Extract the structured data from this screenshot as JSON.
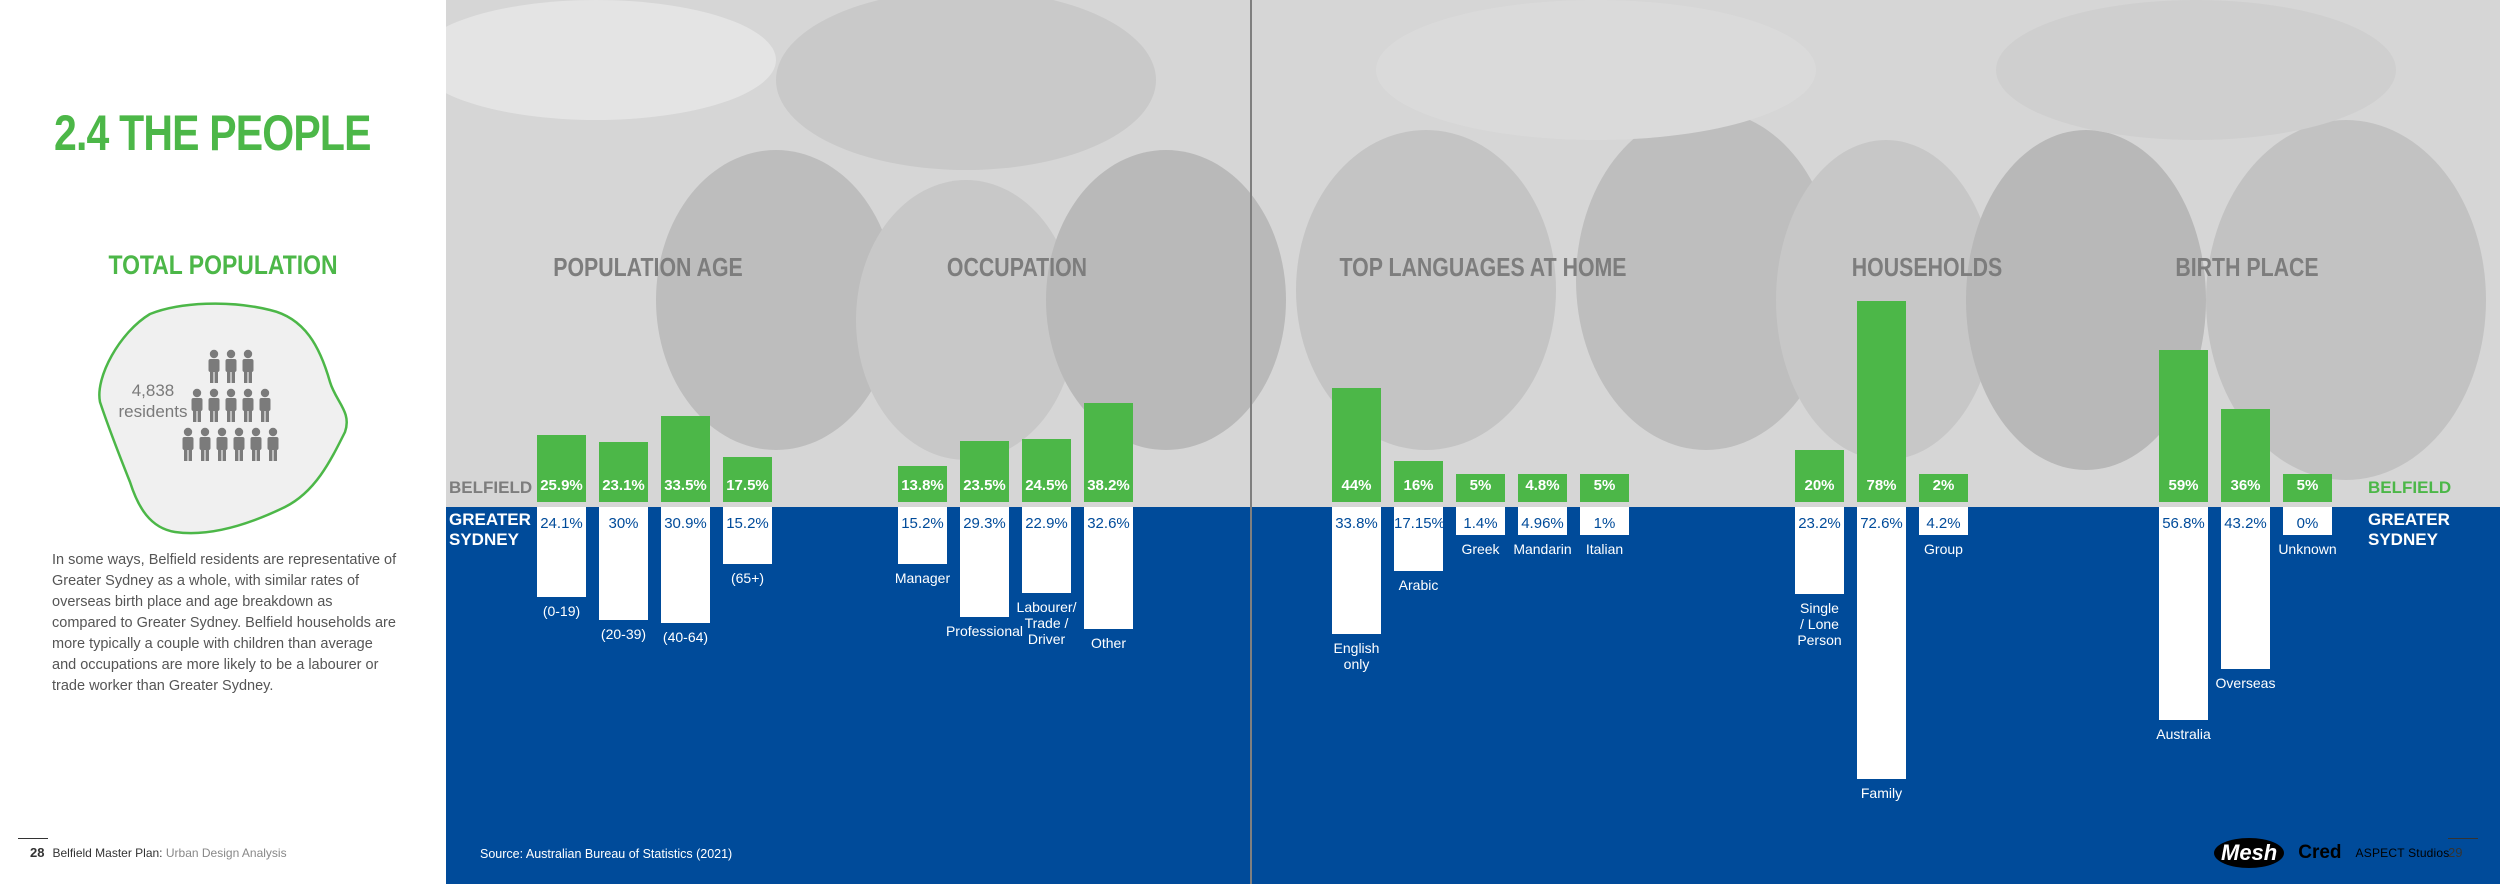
{
  "page": {
    "title": "2.4 THE PEOPLE",
    "total_population": {
      "title": "TOTAL POPULATION",
      "value": "4,838",
      "unit": "residents"
    },
    "intro": "In some ways, Belfield residents are representative of Greater Sydney as a whole, with similar rates of overseas birth place and age breakdown as compared to Greater Sydney. Belfield households are more typically a couple with children than average and occupations are more likely to be a labourer or trade worker than Greater Sydney.",
    "legend_top": "BELFIELD",
    "legend_bottom_line1": "GREATER",
    "legend_bottom_line2": "SYDNEY",
    "source": "Source: Australian Bureau of Statistics (2021)",
    "footer_left_page": "28",
    "footer_left_title": "Belfield Master Plan:",
    "footer_left_sub": "Urban Design Analysis",
    "footer_right_page": "29",
    "logo_mesh": "Mesh",
    "logo_cred": "Cred",
    "logo_aspect": "ASPECT Studios"
  },
  "colors": {
    "green": "#4cb748",
    "blue": "#004b9a",
    "photo_gray": "#d4d4d4"
  },
  "chart_data": [
    {
      "type": "bar",
      "title": "POPULATION AGE",
      "categories": [
        "(0-19)",
        "(20-39)",
        "(40-64)",
        "(65+)"
      ],
      "series": [
        {
          "name": "BELFIELD",
          "values": [
            25.9,
            23.1,
            33.5,
            17.5
          ],
          "labels": [
            "25.9%",
            "23.1%",
            "33.5%",
            "17.5%"
          ]
        },
        {
          "name": "GREATER SYDNEY",
          "values": [
            24.1,
            30,
            30.9,
            15.2
          ],
          "labels": [
            "24.1%",
            "30%",
            "30.9%",
            "15.2%"
          ]
        }
      ]
    },
    {
      "type": "bar",
      "title": "OCCUPATION",
      "categories": [
        "Manager",
        "Professional",
        "Labourer/\nTrade /\nDriver",
        "Other"
      ],
      "series": [
        {
          "name": "BELFIELD",
          "values": [
            13.8,
            23.5,
            24.5,
            38.2
          ],
          "labels": [
            "13.8%",
            "23.5%",
            "24.5%",
            "38.2%"
          ]
        },
        {
          "name": "GREATER SYDNEY",
          "values": [
            15.2,
            29.3,
            22.9,
            32.6
          ],
          "labels": [
            "15.2%",
            "29.3%",
            "22.9%",
            "32.6%"
          ]
        }
      ]
    },
    {
      "type": "bar",
      "title": "TOP LANGUAGES AT HOME",
      "categories": [
        "English\nonly",
        "Arabic",
        "Greek",
        "Mandarin",
        "Italian"
      ],
      "series": [
        {
          "name": "BELFIELD",
          "values": [
            44,
            16,
            5,
            4.8,
            5
          ],
          "labels": [
            "44%",
            "16%",
            "5%",
            "4.8%",
            "5%"
          ]
        },
        {
          "name": "GREATER SYDNEY",
          "values": [
            33.8,
            17.15,
            1.4,
            4.96,
            1
          ],
          "labels": [
            "33.8%",
            "17.15%",
            "1.4%",
            "4.96%",
            "1%"
          ]
        }
      ]
    },
    {
      "type": "bar",
      "title": "HOUSEHOLDS",
      "categories": [
        "Single\n/ Lone\nPerson",
        "Family",
        "Group"
      ],
      "series": [
        {
          "name": "BELFIELD",
          "values": [
            20,
            78,
            2
          ],
          "labels": [
            "20%",
            "78%",
            "2%"
          ]
        },
        {
          "name": "GREATER SYDNEY",
          "values": [
            23.2,
            72.6,
            4.2
          ],
          "labels": [
            "23.2%",
            "72.6%",
            "4.2%"
          ]
        }
      ]
    },
    {
      "type": "bar",
      "title": "BIRTH PLACE",
      "categories": [
        "Australia",
        "Overseas",
        "Unknown"
      ],
      "series": [
        {
          "name": "BELFIELD",
          "values": [
            59,
            36,
            5
          ],
          "labels": [
            "59%",
            "36%",
            "5%"
          ]
        },
        {
          "name": "GREATER SYDNEY",
          "values": [
            56.8,
            43.2,
            0
          ],
          "labels": [
            "56.8%",
            "43.2%",
            "0%"
          ]
        }
      ]
    }
  ]
}
